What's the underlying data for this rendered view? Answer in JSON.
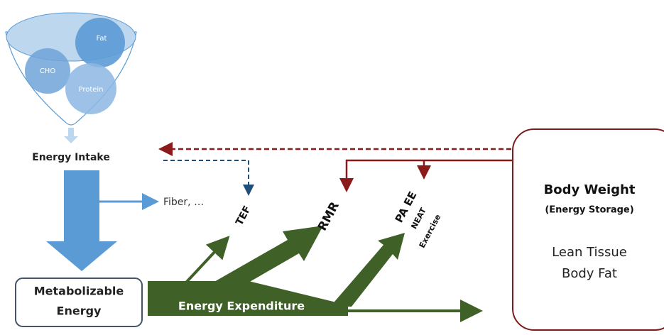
{
  "funnel": {
    "items": [
      "CHO",
      "Fat",
      "Protein"
    ]
  },
  "labels": {
    "energy_intake": "Energy Intake",
    "fiber": "Fiber, …",
    "metabolizable": [
      "Metabolizable",
      "Energy"
    ],
    "energy_expenditure": "Energy Expenditure",
    "tef": "TEF",
    "rmr": "RMR",
    "pa_ee": "PA EE",
    "neat": "NEAT",
    "exercise": "Exercise"
  },
  "body_weight": {
    "title": "Body Weight",
    "subtitle": "(Energy Storage)",
    "items": [
      "Lean Tissue",
      "Body Fat"
    ]
  }
}
